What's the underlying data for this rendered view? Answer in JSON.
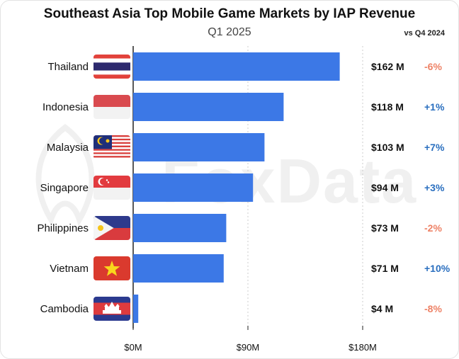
{
  "title": "Southeast Asia Top Mobile Game Markets by IAP Revenue",
  "subtitle": "Q1 2025",
  "compare_label": "vs Q4 2024",
  "watermark": "FoxData",
  "colors": {
    "bar": "#3c78e6",
    "negative": "#ee8266",
    "positive": "#2a6fbf",
    "grid": "#cccccc",
    "axis": "#222222"
  },
  "chart_data": {
    "type": "bar",
    "orientation": "horizontal",
    "categories": [
      "Thailand",
      "Indonesia",
      "Malaysia",
      "Singapore",
      "Philippines",
      "Vietnam",
      "Cambodia"
    ],
    "values": [
      162,
      118,
      103,
      94,
      73,
      71,
      4
    ],
    "value_labels": [
      "$162 M",
      "$118 M",
      "$103 M",
      "$94 M",
      "$73 M",
      "$71 M",
      "$4 M"
    ],
    "changes": [
      "-6%",
      "+1%",
      "+7%",
      "+3%",
      "-2%",
      "+10%",
      "-8%"
    ],
    "change_values": [
      -6,
      1,
      7,
      3,
      -2,
      10,
      -8
    ],
    "xlim": [
      0,
      180
    ],
    "xticks": [
      0,
      90,
      180
    ],
    "xtick_labels": [
      "$0M",
      "$90M",
      "$180M"
    ],
    "grid": "vertical-dashed",
    "flags": [
      "thailand-flag",
      "indonesia-flag",
      "malaysia-flag",
      "singapore-flag",
      "philippines-flag",
      "vietnam-flag",
      "cambodia-flag"
    ]
  }
}
